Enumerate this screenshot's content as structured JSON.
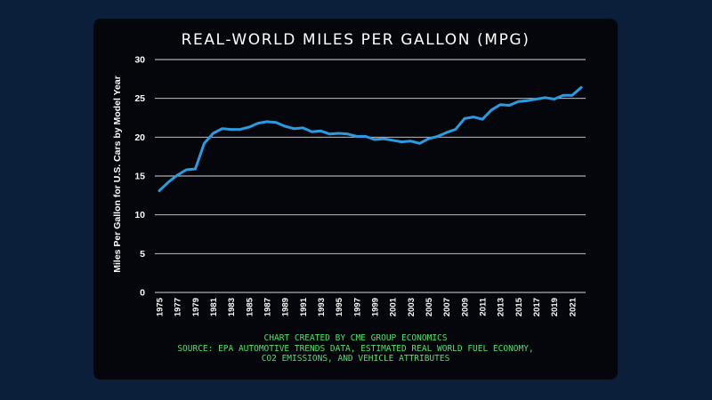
{
  "chart_data": {
    "type": "line",
    "title": "REAL-WORLD MILES PER GALLON (MPG)",
    "xlabel": "",
    "ylabel": "Miles Per Gallon for U.S. Cars by Model Year",
    "ylim": [
      0,
      30
    ],
    "yticks": [
      "0",
      "5",
      "10",
      "15",
      "20",
      "25",
      "30"
    ],
    "xticks": [
      "1975",
      "1977",
      "1979",
      "1981",
      "1983",
      "1985",
      "1987",
      "1989",
      "1991",
      "1993",
      "1995",
      "1997",
      "1999",
      "2001",
      "2003",
      "2005",
      "2007",
      "2009",
      "2011",
      "2013",
      "2015",
      "2017",
      "2019",
      "2021"
    ],
    "grid": true,
    "line_color": "#2b9be0",
    "x": [
      1975,
      1976,
      1977,
      1978,
      1979,
      1980,
      1981,
      1982,
      1983,
      1984,
      1985,
      1986,
      1987,
      1988,
      1989,
      1990,
      1991,
      1992,
      1993,
      1994,
      1995,
      1996,
      1997,
      1998,
      1999,
      2000,
      2001,
      2002,
      2003,
      2004,
      2005,
      2006,
      2007,
      2008,
      2009,
      2010,
      2011,
      2012,
      2013,
      2014,
      2015,
      2016,
      2017,
      2018,
      2019,
      2020,
      2021,
      2022
    ],
    "y": [
      13.1,
      14.2,
      15.1,
      15.8,
      15.9,
      19.2,
      20.5,
      21.1,
      21.0,
      21.0,
      21.3,
      21.8,
      22.0,
      21.9,
      21.4,
      21.1,
      21.2,
      20.7,
      20.8,
      20.4,
      20.5,
      20.4,
      20.1,
      20.1,
      19.7,
      19.8,
      19.6,
      19.4,
      19.5,
      19.2,
      19.8,
      20.1,
      20.6,
      21.0,
      22.4,
      22.6,
      22.3,
      23.5,
      24.2,
      24.1,
      24.6,
      24.7,
      24.9,
      25.1,
      24.9,
      25.4,
      25.4,
      26.4
    ]
  },
  "footer": {
    "line1": "CHART CREATED BY CME GROUP ECONOMICS",
    "line2": "SOURCE: EPA AUTOMOTIVE TRENDS DATA, ESTIMATED REAL WORLD FUEL ECONOMY,",
    "line3": "CO2 EMISSIONS, AND VEHICLE ATTRIBUTES"
  }
}
